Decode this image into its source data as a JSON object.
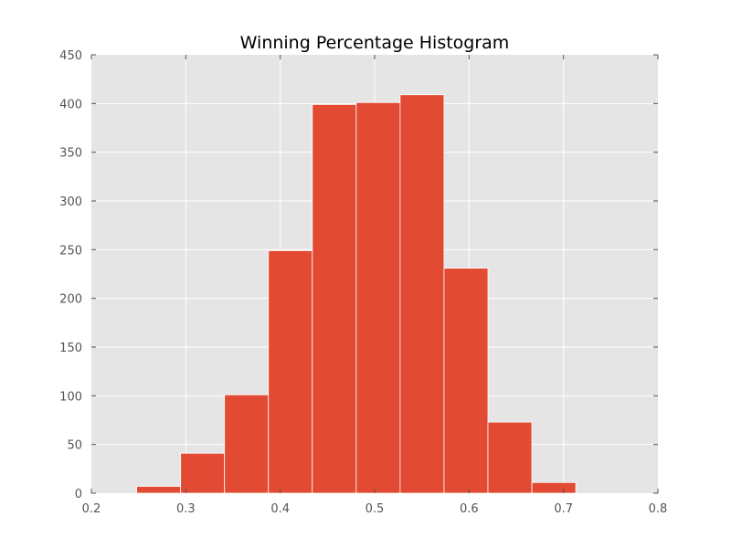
{
  "chart_data": {
    "type": "bar",
    "title": "Winning Percentage Histogram",
    "xlabel": "",
    "ylabel": "",
    "xlim": [
      0.2,
      0.8
    ],
    "ylim": [
      0,
      450
    ],
    "xticks": [
      "0.2",
      "0.3",
      "0.4",
      "0.5",
      "0.6",
      "0.7",
      "0.8"
    ],
    "xtick_values": [
      0.2,
      0.3,
      0.4,
      0.5,
      0.6,
      0.7,
      0.8
    ],
    "yticks": [
      "0",
      "50",
      "100",
      "150",
      "200",
      "250",
      "300",
      "350",
      "400",
      "450"
    ],
    "ytick_values": [
      0,
      50,
      100,
      150,
      200,
      250,
      300,
      350,
      400,
      450
    ],
    "bins": [
      {
        "start": 0.248,
        "end": 0.2945,
        "count": 7
      },
      {
        "start": 0.2945,
        "end": 0.341,
        "count": 41
      },
      {
        "start": 0.341,
        "end": 0.3875,
        "count": 101
      },
      {
        "start": 0.3875,
        "end": 0.434,
        "count": 249
      },
      {
        "start": 0.434,
        "end": 0.4805,
        "count": 399
      },
      {
        "start": 0.4805,
        "end": 0.527,
        "count": 401
      },
      {
        "start": 0.527,
        "end": 0.5735,
        "count": 409
      },
      {
        "start": 0.5735,
        "end": 0.62,
        "count": 231
      },
      {
        "start": 0.62,
        "end": 0.6665,
        "count": 73
      },
      {
        "start": 0.6665,
        "end": 0.713,
        "count": 11
      }
    ],
    "grid": true,
    "colors": {
      "bar": "#e24a33",
      "plot_background": "#e5e5e5",
      "grid": "#ffffff",
      "tick_label": "#555555",
      "title": "#000000"
    }
  }
}
